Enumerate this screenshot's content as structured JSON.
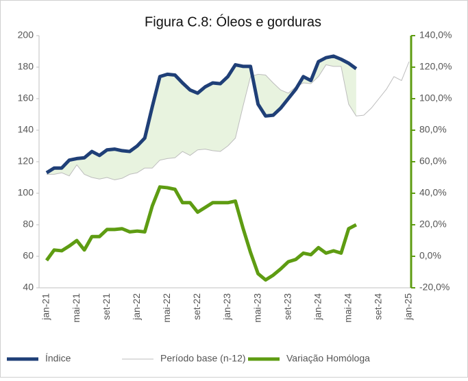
{
  "chart_data": {
    "type": "line",
    "title": "Figura C.8: Óleos e gorduras",
    "categories": [
      "jan-21",
      null,
      null,
      null,
      "mai-21",
      null,
      null,
      null,
      "set-21",
      null,
      null,
      null,
      "jan-22",
      null,
      null,
      null,
      "mai-22",
      null,
      null,
      null,
      "set-22",
      null,
      null,
      null,
      "jan-23",
      null,
      null,
      null,
      "mai-23",
      null,
      null,
      null,
      "set-23",
      null,
      null,
      null,
      "jan-24",
      null,
      null,
      null,
      "mai-24",
      null,
      null,
      null,
      "set-24",
      null,
      null,
      null,
      "jan-25"
    ],
    "series": [
      {
        "name": "Índice",
        "color": "#1f3f77",
        "values": [
          113,
          116,
          116,
          121,
          122,
          122.5,
          126.5,
          124,
          127.5,
          128,
          127,
          126.5,
          130,
          135,
          155,
          174,
          175.5,
          175,
          170,
          165.5,
          163.5,
          167.5,
          170,
          169.5,
          174,
          181.5,
          180.5,
          180.5,
          156.5,
          149,
          149.5,
          154,
          160,
          166,
          174,
          171.5,
          183.5,
          186,
          187,
          185,
          182.5,
          179,
          null,
          null,
          null,
          null,
          null,
          null,
          null
        ]
      },
      {
        "name": "Período base (n-12)",
        "color": "#bdbdbd",
        "values": [
          112,
          112,
          113,
          111,
          118,
          112,
          110,
          109,
          110,
          108.5,
          109.5,
          112,
          113,
          116,
          116,
          121,
          122,
          122.5,
          126.5,
          124,
          127.5,
          128,
          127,
          126.5,
          130,
          135,
          155,
          174,
          175.5,
          175,
          170,
          165.5,
          163.5,
          167.5,
          170,
          169.5,
          174,
          181.5,
          180.5,
          180.5,
          156.5,
          149,
          149.5,
          154,
          160,
          166,
          174,
          171.5,
          183.5
        ]
      },
      {
        "name": "Variação Homóloga",
        "color": "#5e9c12",
        "axis": "y2",
        "values": [
          -2.6,
          4,
          3.5,
          6.5,
          10,
          4,
          12.5,
          12.5,
          17,
          17,
          17.5,
          15.5,
          16,
          15.5,
          32,
          44,
          43.5,
          42.5,
          34,
          34,
          28,
          31,
          34,
          34,
          34,
          35,
          18,
          2.5,
          -11,
          -15,
          -12,
          -8,
          -3.5,
          -2,
          2,
          1,
          5.5,
          2,
          3.5,
          2,
          17.5,
          20,
          null,
          null,
          null,
          null,
          null,
          null,
          null
        ]
      }
    ],
    "ylim": [
      40,
      200
    ],
    "yticks": [
      40,
      60,
      80,
      100,
      120,
      140,
      160,
      180,
      200
    ],
    "y2lim": [
      -20,
      140
    ],
    "y2ticks": [
      {
        "value": -20,
        "label": "-20,0%"
      },
      {
        "value": 0,
        "label": "0,0%"
      },
      {
        "value": 20,
        "label": "20,0%"
      },
      {
        "value": 40,
        "label": "40,0%"
      },
      {
        "value": 60,
        "label": "60,0%"
      },
      {
        "value": 80,
        "label": "80,0%"
      },
      {
        "value": 100,
        "label": "100,0%"
      },
      {
        "value": 120,
        "label": "120,0%"
      },
      {
        "value": 140,
        "label": "140,0%"
      }
    ],
    "shade_color": "#e8f3df"
  }
}
